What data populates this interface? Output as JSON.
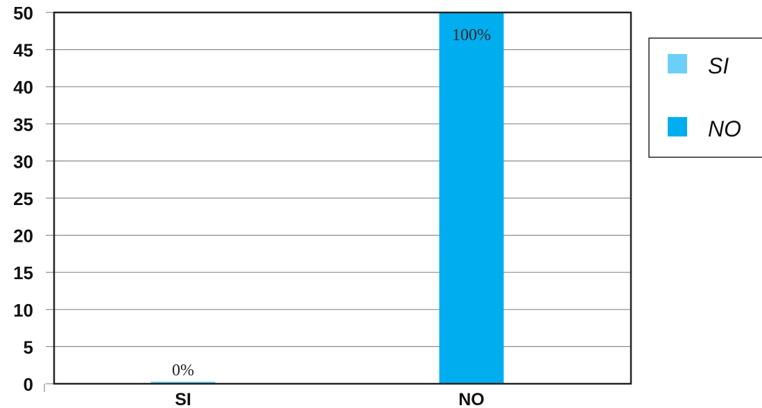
{
  "chart_data": {
    "type": "bar",
    "categories": [
      "SI",
      "NO"
    ],
    "values": [
      0,
      50
    ],
    "data_labels": [
      "0%",
      "100%"
    ],
    "colors": [
      "#6ccff6",
      "#00aeef"
    ],
    "ylim": [
      0,
      50
    ],
    "yticks": [
      0,
      5,
      10,
      15,
      20,
      25,
      30,
      35,
      40,
      45,
      50
    ],
    "grid": true,
    "legend": {
      "placement": "right",
      "entries": [
        {
          "label": "SI",
          "color": "#6ccff6"
        },
        {
          "label": "NO",
          "color": "#00aeef"
        }
      ]
    }
  }
}
